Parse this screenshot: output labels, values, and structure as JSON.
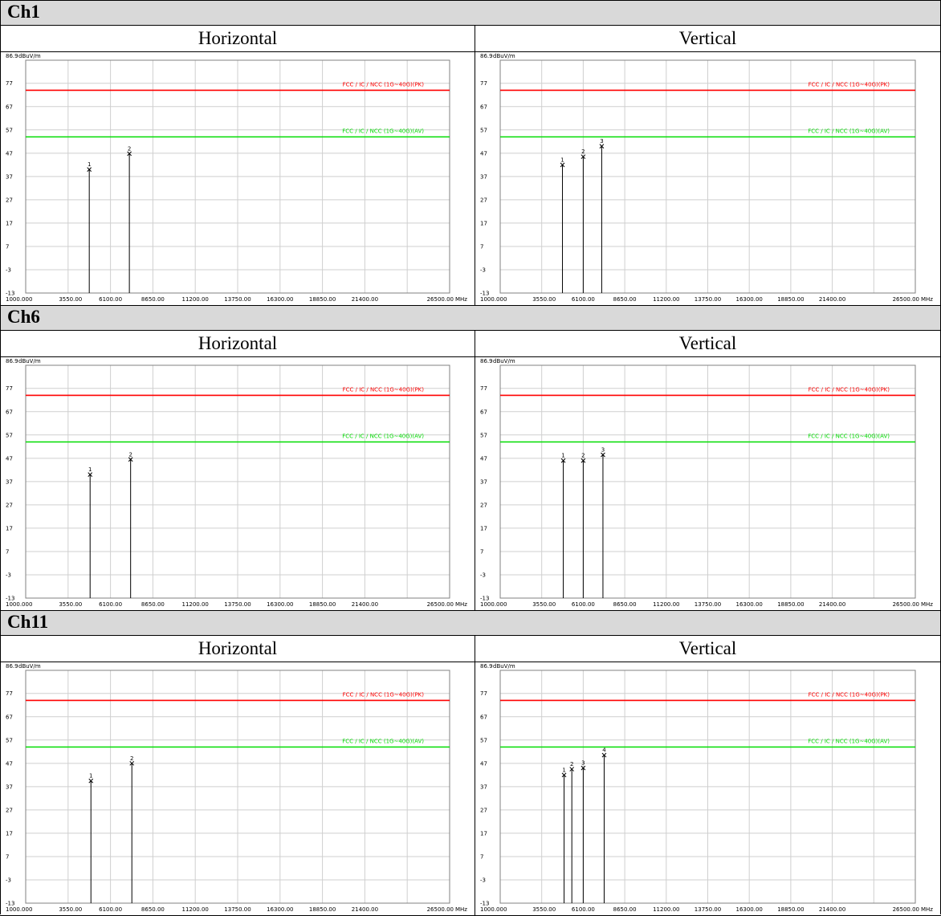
{
  "chart_defaults": {
    "type": "line",
    "top_label": "86.9",
    "ylabel": "dBuV/m",
    "xunit": "MHz",
    "ylim": [
      -13,
      86.9
    ],
    "y_ticks": [
      "77",
      "67",
      "57",
      "47",
      "37",
      "27",
      "17",
      "7",
      "-3",
      "-13"
    ],
    "xlim": [
      1000,
      26500
    ],
    "x_tick_labels": [
      "1000.000",
      "3550.00",
      "6100.00",
      "8650.00",
      "11200.00",
      "13750.00",
      "16300.00",
      "18850.00",
      "21400.00",
      "26500.00"
    ],
    "x_tick_values": [
      1000,
      3550,
      6100,
      8650,
      11200,
      13750,
      16300,
      18850,
      21400,
      26500
    ],
    "grid": true,
    "limit_lines": [
      {
        "label": "FCC / IC / NCC (1G~40G)(PK)",
        "value": 74,
        "color": "#ff0000"
      },
      {
        "label": "FCC / IC / NCC (1G~40G)(AV)",
        "value": 54,
        "color": "#00dd00"
      }
    ]
  },
  "channels": [
    {
      "label": "Ch1",
      "plots": [
        {
          "title": "Horizontal",
          "chart_data": {
            "type": "line",
            "markers": [
              {
                "label": "1",
                "x": 4824,
                "y": 40.0
              },
              {
                "label": "2",
                "x": 7236,
                "y": 46.8
              }
            ]
          }
        },
        {
          "title": "Vertical",
          "chart_data": {
            "type": "line",
            "markers": [
              {
                "label": "1",
                "x": 4824,
                "y": 42.0
              },
              {
                "label": "2",
                "x": 6100,
                "y": 45.5
              },
              {
                "label": "3",
                "x": 7236,
                "y": 50.0
              }
            ]
          }
        }
      ]
    },
    {
      "label": "Ch6",
      "plots": [
        {
          "title": "Horizontal",
          "chart_data": {
            "type": "line",
            "markers": [
              {
                "label": "1",
                "x": 4874,
                "y": 40.0
              },
              {
                "label": "2",
                "x": 7311,
                "y": 46.5
              }
            ]
          }
        },
        {
          "title": "Vertical",
          "chart_data": {
            "type": "line",
            "markers": [
              {
                "label": "1",
                "x": 4874,
                "y": 46.0
              },
              {
                "label": "2",
                "x": 6100,
                "y": 46.0
              },
              {
                "label": "3",
                "x": 7311,
                "y": 48.5
              }
            ]
          }
        }
      ]
    },
    {
      "label": "Ch11",
      "plots": [
        {
          "title": "Horizontal",
          "chart_data": {
            "type": "line",
            "markers": [
              {
                "label": "1",
                "x": 4924,
                "y": 39.5
              },
              {
                "label": "2",
                "x": 7386,
                "y": 47.0
              }
            ]
          }
        },
        {
          "title": "Vertical",
          "chart_data": {
            "type": "line",
            "markers": [
              {
                "label": "1",
                "x": 4924,
                "y": 42.0
              },
              {
                "label": "2",
                "x": 5400,
                "y": 44.5
              },
              {
                "label": "3",
                "x": 6100,
                "y": 45.0
              },
              {
                "label": "4",
                "x": 7386,
                "y": 50.5
              }
            ]
          }
        }
      ]
    }
  ]
}
